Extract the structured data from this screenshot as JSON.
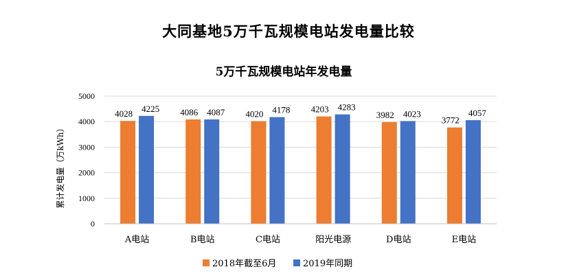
{
  "page_title": "大同基地5万千瓦规模电站发电量比较",
  "chart_data": {
    "type": "bar",
    "title": "5万千瓦规模电站年发电量",
    "xlabel": "",
    "ylabel": "累计发电量（万kWh）",
    "ylim": [
      0,
      5000
    ],
    "yticks": [
      0,
      1000,
      2000,
      3000,
      4000,
      5000
    ],
    "categories": [
      "A电站",
      "B电站",
      "C电站",
      "阳光电源",
      "D电站",
      "E电站"
    ],
    "series": [
      {
        "name": "2018年截至6月",
        "color": "#ED7D31",
        "values": [
          4028,
          4086,
          4020,
          4203,
          3982,
          3772
        ]
      },
      {
        "name": "2019年同期",
        "color": "#4472C4",
        "values": [
          4225,
          4087,
          4178,
          4283,
          4023,
          4057
        ]
      }
    ],
    "grid": true,
    "legend_position": "bottom"
  }
}
